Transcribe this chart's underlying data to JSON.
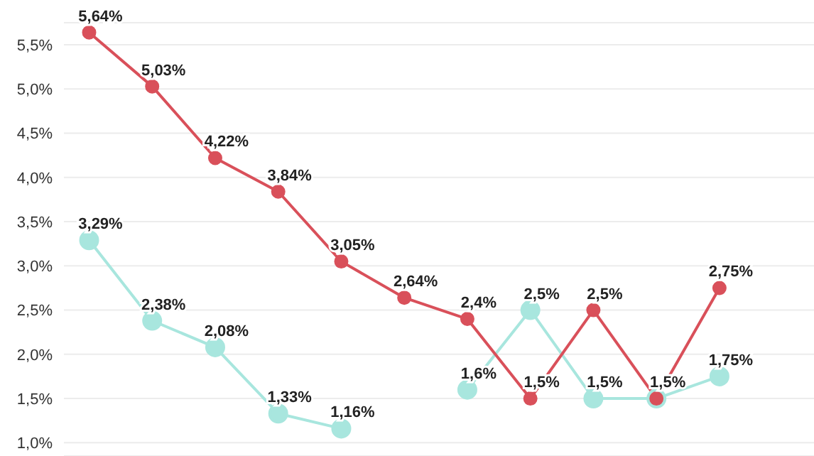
{
  "chart_data": {
    "type": "line",
    "categories": [
      null,
      null,
      null,
      null,
      null,
      null,
      null,
      null,
      null,
      null,
      null
    ],
    "series": [
      {
        "color": "#d9505a",
        "values": [
          5.64,
          5.03,
          4.22,
          3.84,
          3.05,
          2.64,
          2.4,
          1.5,
          2.5,
          1.5,
          2.75
        ],
        "value_labels": [
          "5,64%",
          "5,03%",
          "4,22%",
          "3,84%",
          "3,05%",
          "2,64%",
          "2,4%",
          "1,5%",
          "2,5%",
          "1,5%",
          "2,75%"
        ]
      },
      {
        "color": "#a8e6de",
        "values": [
          3.29,
          2.38,
          2.08,
          1.33,
          1.16,
          null,
          1.6,
          2.5,
          1.5,
          1.5,
          1.75
        ],
        "value_labels": [
          "3,29%",
          "2,38%",
          "2,08%",
          "1,33%",
          "1,16%",
          null,
          "1,6%",
          "2,5%",
          "1,5%",
          null,
          "1,75%"
        ]
      }
    ],
    "ylim": [
      0.85,
      5.75
    ],
    "yticks": [
      {
        "value": 1,
        "label": "1,0%"
      },
      {
        "value": 1.5,
        "label": "1,5%"
      },
      {
        "value": 2,
        "label": "2,0%"
      },
      {
        "value": 2.5,
        "label": "2,5%"
      },
      {
        "value": 3,
        "label": "3,0%"
      },
      {
        "value": 3.5,
        "label": "3,5%"
      },
      {
        "value": 4,
        "label": "4,0%"
      },
      {
        "value": 4.5,
        "label": "4,5%"
      },
      {
        "value": 5,
        "label": "5,0%"
      },
      {
        "value": 5.5,
        "label": "5,5%"
      }
    ],
    "grid": "y",
    "tick_labels": "y",
    "marker": "circle",
    "line_style": "solid"
  }
}
